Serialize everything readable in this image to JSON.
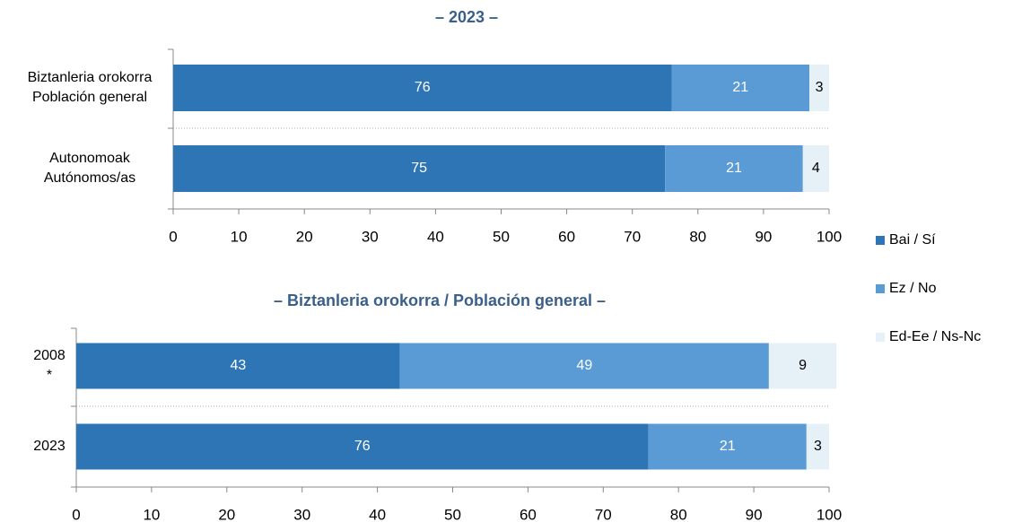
{
  "chart_data": [
    {
      "type": "stacked_bar_horizontal",
      "title": "– 2023 –",
      "categories": [
        [
          "Biztanleria orokorra",
          "Población general"
        ],
        [
          "Autonomoak",
          "Autónomos/as"
        ]
      ],
      "series": [
        {
          "name": "Bai / Sí",
          "color": "#2e75b6",
          "values": [
            76,
            75
          ]
        },
        {
          "name": "Ez / No",
          "color": "#5b9bd5",
          "values": [
            21,
            21
          ]
        },
        {
          "name": "Ed-Ee / Ns-Nc",
          "color": "#e6f1f7",
          "values": [
            3,
            4
          ]
        }
      ],
      "xlim": [
        0,
        100
      ],
      "xticks": [
        0,
        10,
        20,
        30,
        40,
        50,
        60,
        70,
        80,
        90,
        100
      ],
      "legend": "right"
    },
    {
      "type": "stacked_bar_horizontal",
      "title": "– Biztanleria orokorra / Población general –",
      "categories": [
        [
          "2008",
          "*"
        ],
        [
          "2023"
        ]
      ],
      "series": [
        {
          "values": [
            43,
            76
          ]
        },
        {
          "values": [
            49,
            21
          ]
        },
        {
          "values": [
            9,
            3
          ]
        }
      ],
      "xlim": [
        0,
        100
      ],
      "xticks": [
        0,
        10,
        20,
        30,
        40,
        50,
        60,
        70,
        80,
        90,
        100
      ]
    }
  ]
}
